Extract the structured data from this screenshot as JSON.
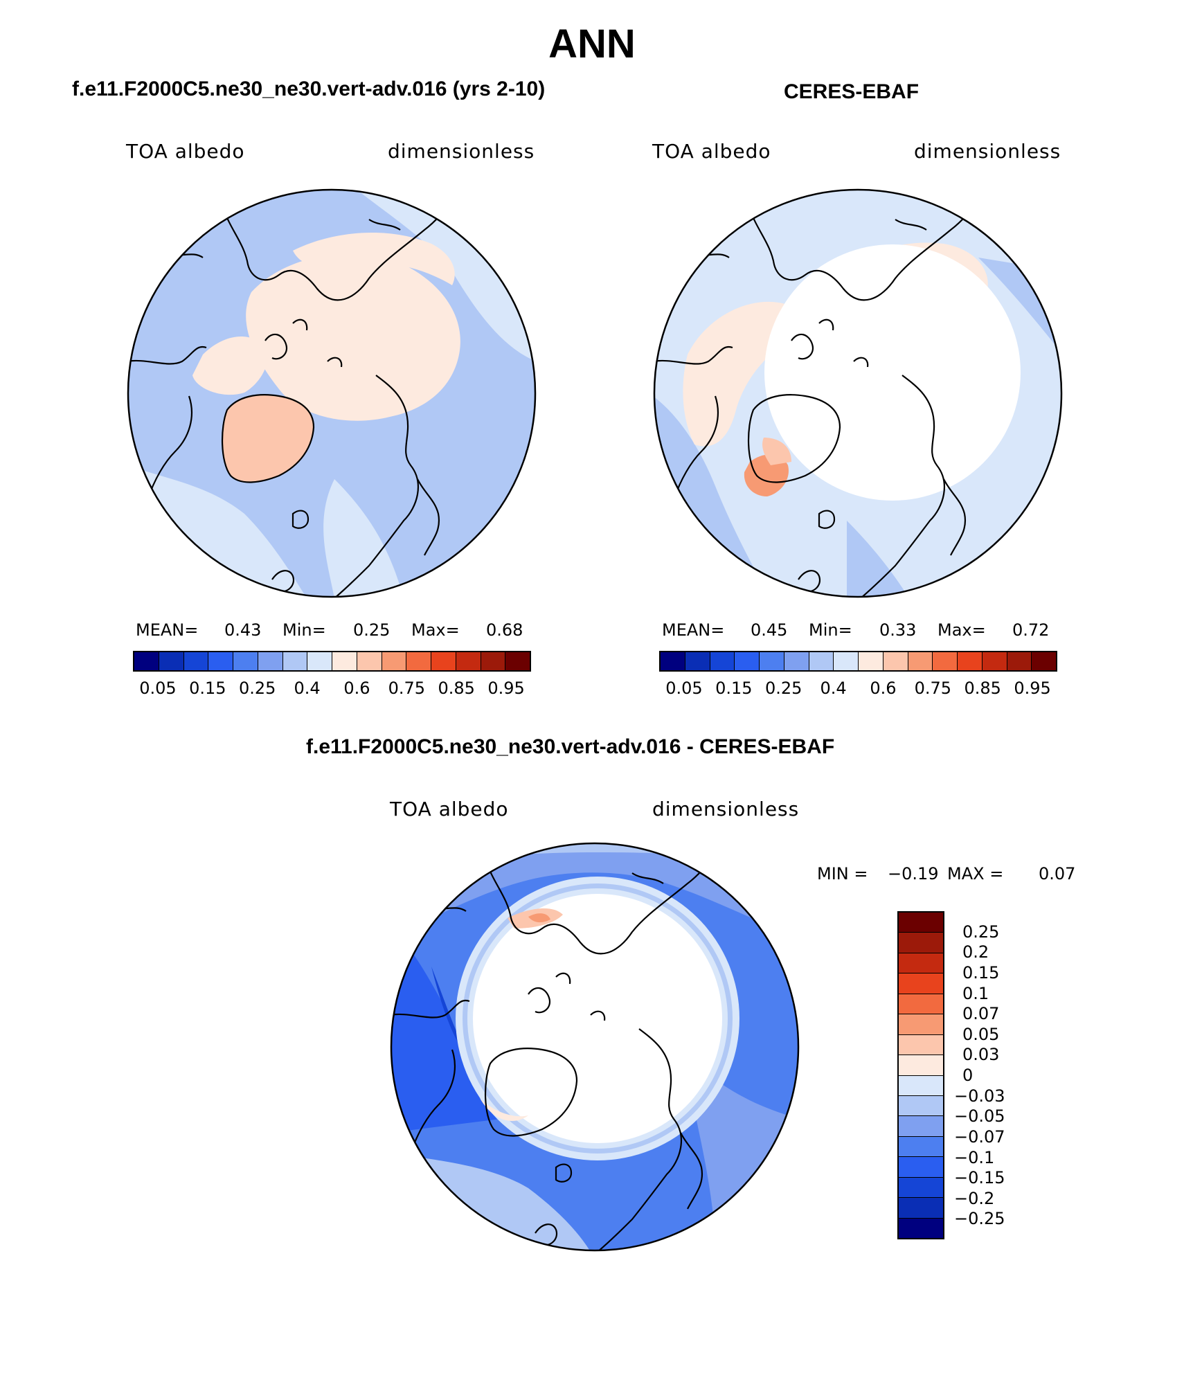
{
  "title": "ANN",
  "panels": [
    {
      "title": "f.e11.F2000C5.ne30_ne30.vert-adv.016 (yrs 2-10)",
      "variable": "TOA albedo",
      "units": "dimensionless",
      "mean_label": "MEAN=",
      "mean": "0.43",
      "min_label": "Min=",
      "min": "0.25",
      "max_label": "Max=",
      "max": "0.68",
      "field": {
        "background": "0.25-0.4",
        "pole": "0.4-0.6",
        "greenland": "0.6-0.75",
        "inner_ring": "0.4-0.6"
      }
    },
    {
      "title": "CERES-EBAF",
      "variable": "TOA albedo",
      "units": "dimensionless",
      "mean_label": "MEAN=",
      "mean": "0.45",
      "min_label": "Min=",
      "min": "0.33",
      "max_label": "Max=",
      "max": "0.72",
      "field": {
        "background": "0.4-0.6",
        "pole": "missing",
        "greenland": "0.6-0.75"
      }
    }
  ],
  "colorbar": {
    "colors": [
      "#00007f",
      "#0a2eb5",
      "#1545d6",
      "#2a5ef0",
      "#4d7ff0",
      "#7fa0f0",
      "#b0c8f5",
      "#d9e7fa",
      "#fdeadf",
      "#fcc6ad",
      "#f79a73",
      "#f26a3f",
      "#e8431d",
      "#c42a10",
      "#9c1a0a",
      "#6b0000"
    ],
    "ticks": [
      "0.05",
      "0.15",
      "0.25",
      "0.4",
      "0.6",
      "0.75",
      "0.85",
      "0.95"
    ]
  },
  "diff": {
    "title": "f.e11.F2000C5.ne30_ne30.vert-adv.016 - CERES-EBAF",
    "variable": "TOA albedo",
    "units": "dimensionless",
    "min_label": "MIN =",
    "min": "−0.19",
    "max_label": "MAX =",
    "max": "0.07",
    "colors": [
      "#6b0000",
      "#9c1a0a",
      "#c42a10",
      "#e8431d",
      "#f26a3f",
      "#f79a73",
      "#fcc6ad",
      "#fdeadf",
      "#d9e7fa",
      "#b0c8f5",
      "#7fa0f0",
      "#4d7ff0",
      "#2a5ef0",
      "#1545d6",
      "#0a2eb5",
      "#00007f"
    ],
    "ticks": [
      "0.25",
      "0.2",
      "0.15",
      "0.1",
      "0.07",
      "0.05",
      "0.03",
      "0",
      "−0.03",
      "−0.05",
      "−0.07",
      "−0.1",
      "−0.15",
      "−0.2",
      "−0.25"
    ]
  }
}
